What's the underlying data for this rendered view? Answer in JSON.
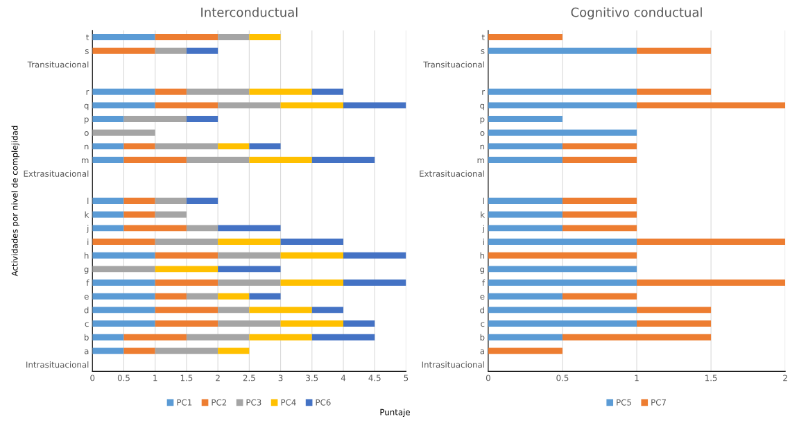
{
  "chart_data": [
    {
      "type": "bar",
      "orientation": "horizontal",
      "stacked": true,
      "title": "Interconductual",
      "ylabel": "Actividades por nivel de complejidad",
      "xlabel": "Puntaje",
      "categories": [
        "t",
        "s",
        "Transituacional",
        null,
        "r",
        "q",
        "p",
        "o",
        "n",
        "m",
        "Extrasituacional",
        null,
        "l",
        "k",
        "j",
        "i",
        "h",
        "g",
        "f",
        "e",
        "d",
        "c",
        "b",
        "a",
        "Intrasituacional"
      ],
      "series": [
        {
          "name": "PC1",
          "color": "#5b9bd5",
          "values": [
            1,
            null,
            null,
            null,
            1,
            1,
            0.5,
            null,
            0.5,
            0.5,
            null,
            null,
            0.5,
            0.5,
            0.5,
            null,
            1,
            null,
            1,
            1,
            1,
            1,
            0.5,
            0.5,
            null
          ]
        },
        {
          "name": "PC2",
          "color": "#ed7d31",
          "values": [
            1,
            1,
            null,
            null,
            0.5,
            1,
            null,
            null,
            0.5,
            1,
            null,
            null,
            0.5,
            0.5,
            1,
            1,
            1,
            null,
            1,
            0.5,
            1,
            1,
            1,
            0.5,
            null
          ]
        },
        {
          "name": "PC3",
          "color": "#a5a5a5",
          "values": [
            0.5,
            0.5,
            null,
            null,
            1,
            1,
            1,
            1,
            1,
            1,
            null,
            null,
            0.5,
            0.5,
            0.5,
            1,
            1,
            1,
            1,
            0.5,
            0.5,
            1,
            1,
            1,
            null
          ]
        },
        {
          "name": "PC4",
          "color": "#ffc000",
          "values": [
            0.5,
            null,
            null,
            null,
            1,
            1,
            null,
            null,
            0.5,
            1,
            null,
            null,
            null,
            null,
            null,
            1,
            1,
            1,
            1,
            0.5,
            1,
            1,
            1,
            0.5,
            null
          ]
        },
        {
          "name": "PC6",
          "color": "#4472c4",
          "values": [
            null,
            0.5,
            null,
            null,
            0.5,
            1,
            0.5,
            null,
            0.5,
            1,
            null,
            null,
            0.5,
            null,
            1,
            1,
            1,
            1,
            1,
            0.5,
            0.5,
            0.5,
            1,
            null,
            null
          ]
        }
      ],
      "xlim": [
        0,
        5
      ],
      "xticks": [
        0,
        0.5,
        1,
        1.5,
        2,
        2.5,
        3,
        3.5,
        4,
        4.5,
        5
      ],
      "grid": "x",
      "legend": "bottom"
    },
    {
      "type": "bar",
      "orientation": "horizontal",
      "stacked": true,
      "title": "Cognitivo conductual",
      "categories": [
        "t",
        "s",
        "Transituacional",
        null,
        "r",
        "q",
        "p",
        "o",
        "n",
        "m",
        "Extrasituacional",
        null,
        "l",
        "k",
        "j",
        "i",
        "h",
        "g",
        "f",
        "e",
        "d",
        "c",
        "b",
        "a",
        "Intrasituacional"
      ],
      "series": [
        {
          "name": "PC5",
          "color": "#5b9bd5",
          "values": [
            null,
            1,
            null,
            null,
            1,
            1,
            0.5,
            1,
            0.5,
            0.5,
            null,
            null,
            0.5,
            0.5,
            0.5,
            1,
            null,
            1,
            1,
            0.5,
            1,
            1,
            0.5,
            null,
            null
          ]
        },
        {
          "name": "PC7",
          "color": "#ed7d31",
          "values": [
            0.5,
            0.5,
            null,
            null,
            0.5,
            1,
            null,
            null,
            0.5,
            0.5,
            null,
            null,
            0.5,
            0.5,
            0.5,
            1,
            1,
            null,
            1,
            0.5,
            0.5,
            0.5,
            1,
            0.5,
            null
          ]
        }
      ],
      "xlim": [
        0,
        2
      ],
      "xticks": [
        0,
        0.5,
        1,
        1.5,
        2
      ],
      "grid": "x",
      "legend": "bottom"
    }
  ]
}
